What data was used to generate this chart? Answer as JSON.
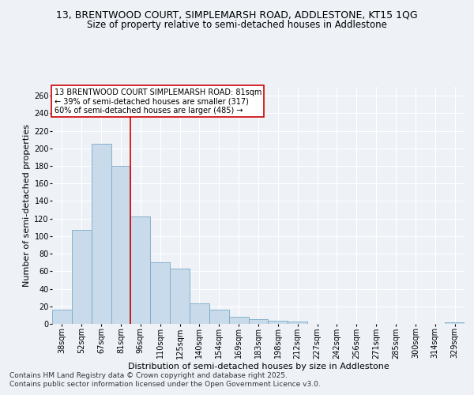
{
  "title1": "13, BRENTWOOD COURT, SIMPLEMARSH ROAD, ADDLESTONE, KT15 1QG",
  "title2": "Size of property relative to semi-detached houses in Addlestone",
  "xlabel": "Distribution of semi-detached houses by size in Addlestone",
  "ylabel": "Number of semi-detached properties",
  "categories": [
    "38sqm",
    "52sqm",
    "67sqm",
    "81sqm",
    "96sqm",
    "110sqm",
    "125sqm",
    "140sqm",
    "154sqm",
    "169sqm",
    "183sqm",
    "198sqm",
    "212sqm",
    "227sqm",
    "242sqm",
    "256sqm",
    "271sqm",
    "285sqm",
    "300sqm",
    "314sqm",
    "329sqm"
  ],
  "values": [
    16,
    107,
    205,
    180,
    122,
    70,
    63,
    23,
    16,
    8,
    5,
    4,
    3,
    0,
    0,
    0,
    0,
    0,
    0,
    0,
    2
  ],
  "bar_color": "#c9daea",
  "bar_edge_color": "#7aaac8",
  "vline_index": 3,
  "vline_color": "#cc0000",
  "annotation_title": "13 BRENTWOOD COURT SIMPLEMARSH ROAD: 81sqm",
  "annotation_line1": "← 39% of semi-detached houses are smaller (317)",
  "annotation_line2": "60% of semi-detached houses are larger (485) →",
  "annotation_box_color": "#ffffff",
  "annotation_box_edge": "#cc0000",
  "ylim": [
    0,
    270
  ],
  "yticks": [
    0,
    20,
    40,
    60,
    80,
    100,
    120,
    140,
    160,
    180,
    200,
    220,
    240,
    260
  ],
  "footer1": "Contains HM Land Registry data © Crown copyright and database right 2025.",
  "footer2": "Contains public sector information licensed under the Open Government Licence v3.0.",
  "bg_color": "#eef2f7",
  "grid_color": "#ffffff",
  "title1_fontsize": 9,
  "title2_fontsize": 8.5,
  "tick_fontsize": 7,
  "ylabel_fontsize": 8,
  "xlabel_fontsize": 8,
  "ann_fontsize": 7,
  "footer_fontsize": 6.5
}
